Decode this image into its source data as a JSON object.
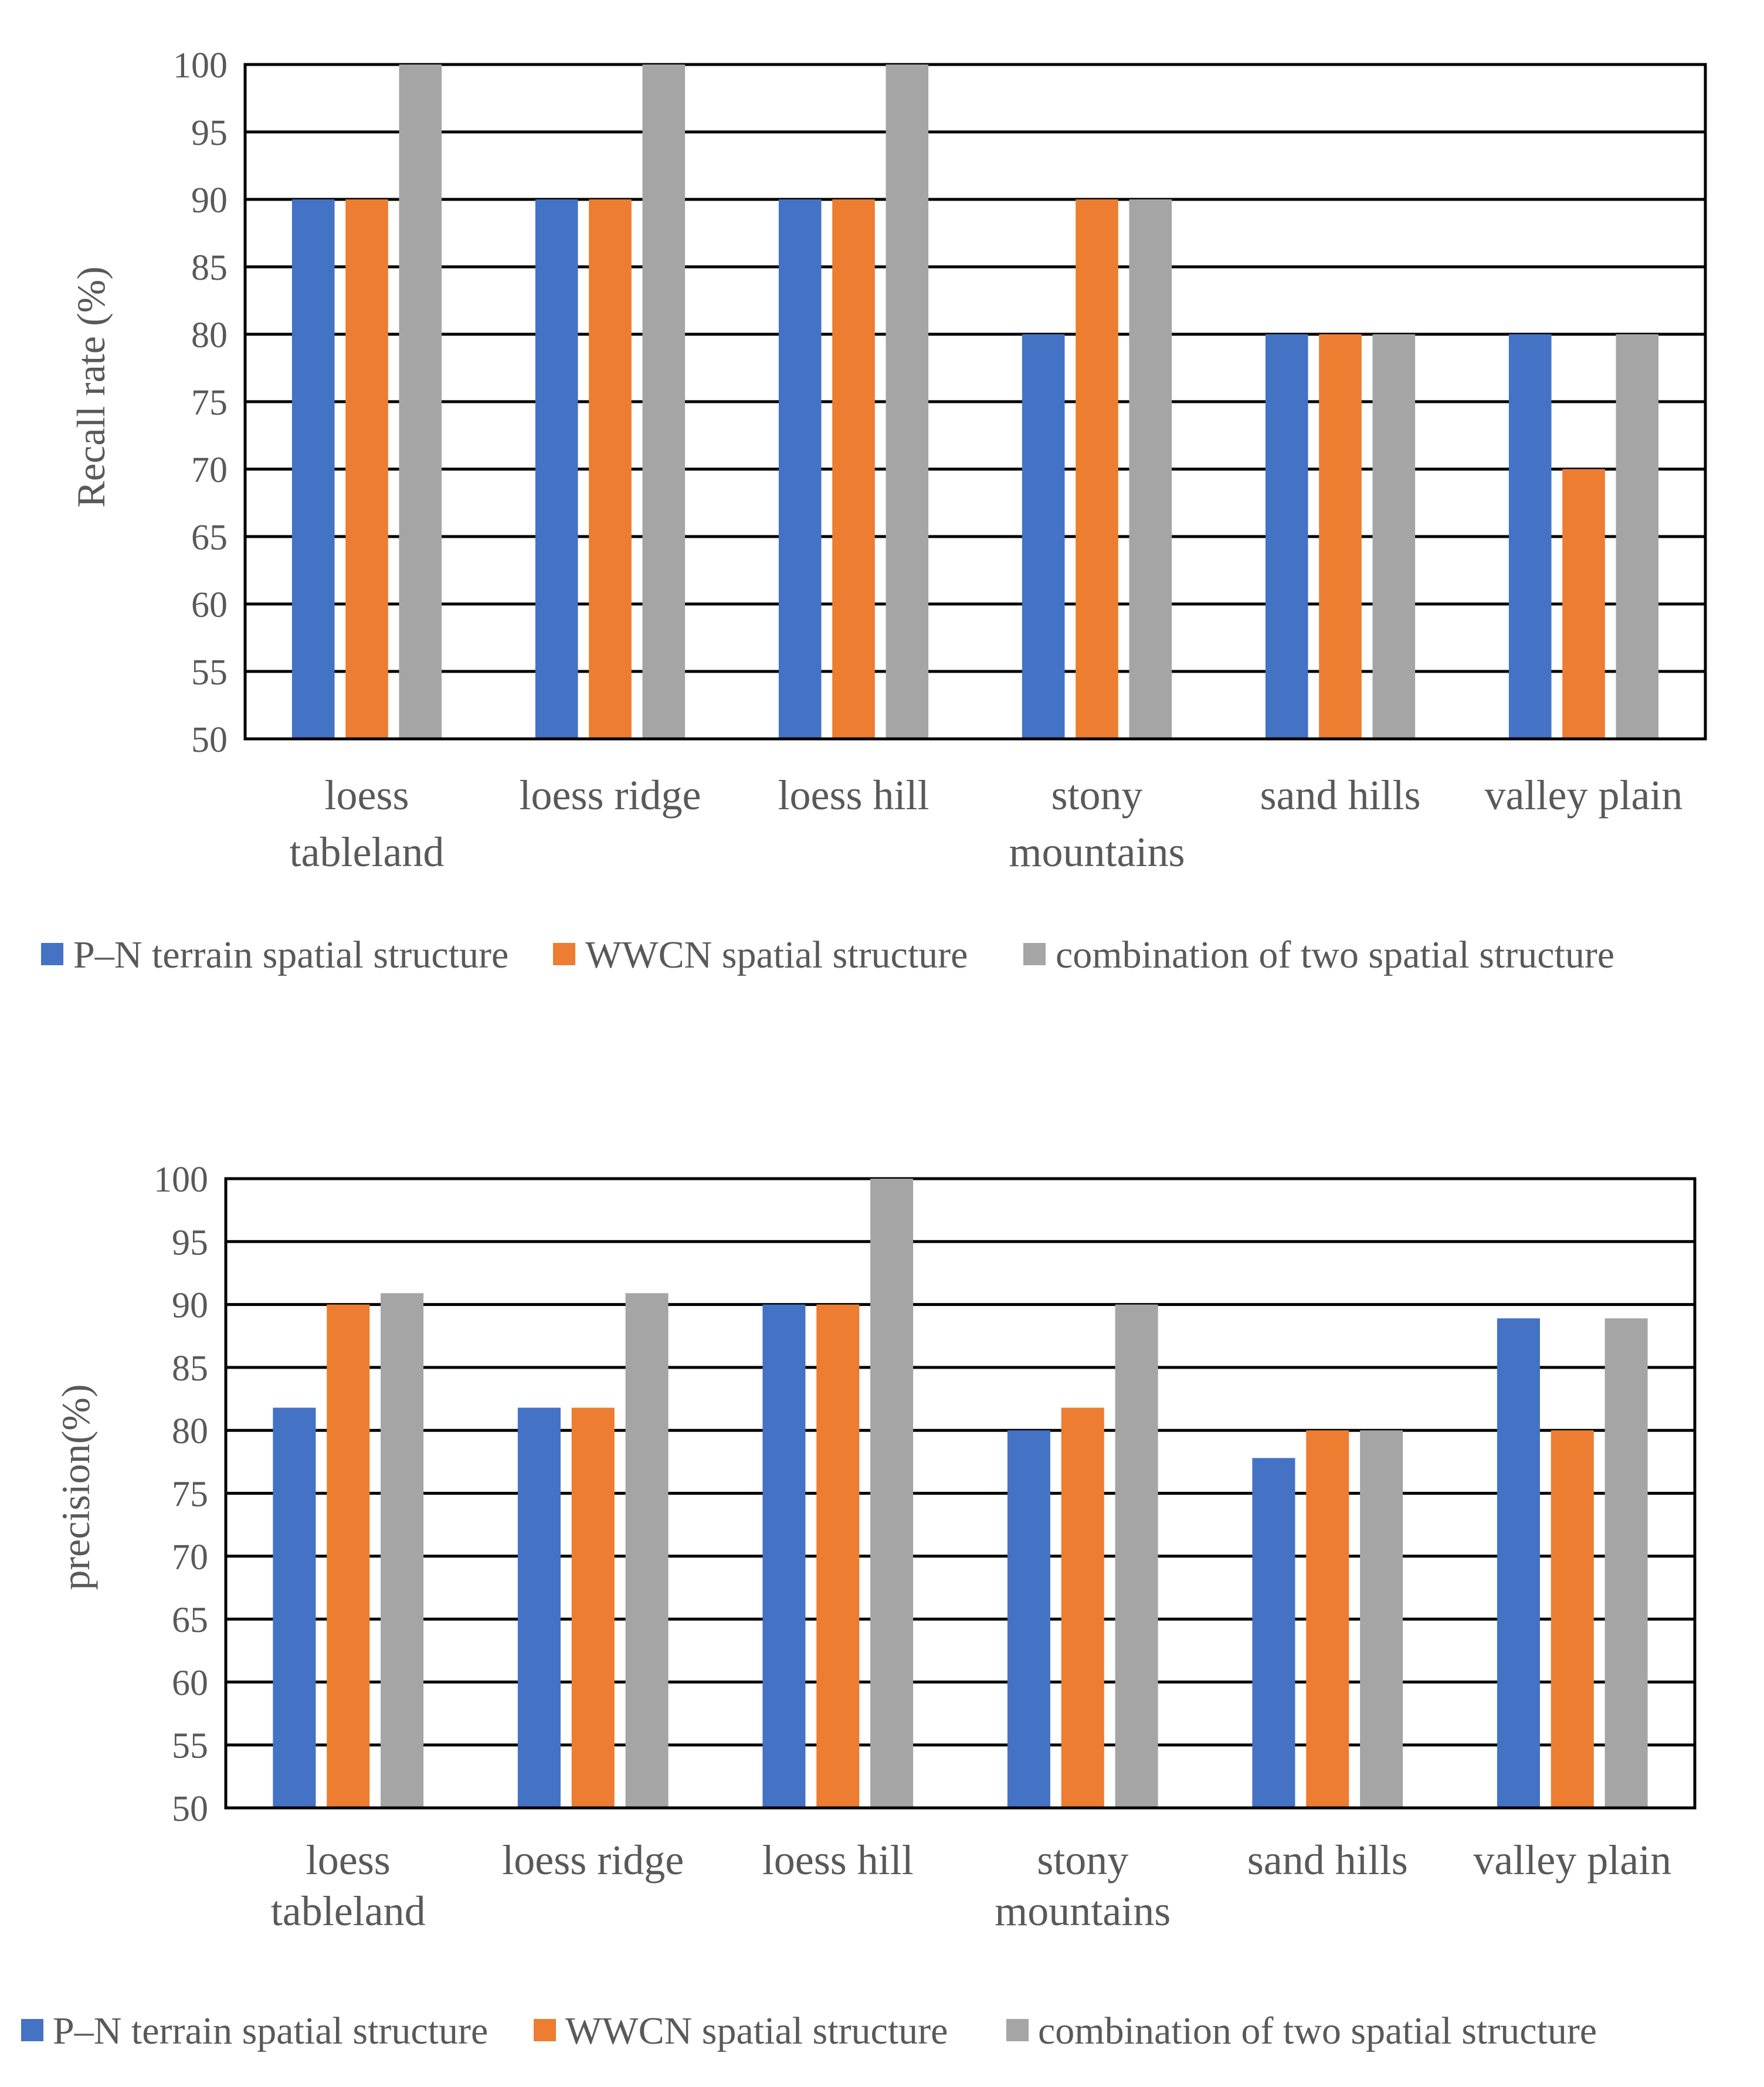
{
  "chart_data": [
    {
      "type": "bar",
      "title": "",
      "xlabel": "",
      "ylabel": "Recall rate (%)",
      "ylim": [
        50,
        100
      ],
      "ytick_step": 5,
      "grid": true,
      "legend_position": "bottom",
      "categories": [
        [
          "loess",
          "tableland"
        ],
        [
          "loess ridge"
        ],
        [
          "loess hill"
        ],
        [
          "stony",
          "mountains"
        ],
        [
          "sand hills"
        ],
        [
          "valley plain"
        ]
      ],
      "series": [
        {
          "name": "P–N terrain spatial structure",
          "color": "#4472C4",
          "values": [
            90,
            90,
            90,
            80,
            80,
            80
          ]
        },
        {
          "name": "WWCN spatial structure",
          "color": "#ED7D31",
          "values": [
            90,
            90,
            90,
            90,
            80,
            70
          ]
        },
        {
          "name": "combination of two spatial structure",
          "color": "#A5A5A5",
          "values": [
            100,
            100,
            100,
            90,
            80,
            80
          ]
        }
      ]
    },
    {
      "type": "bar",
      "title": "",
      "xlabel": "",
      "ylabel": "precision(%)",
      "ylim": [
        50,
        100
      ],
      "ytick_step": 5,
      "grid": true,
      "legend_position": "bottom",
      "categories": [
        [
          "loess",
          "tableland"
        ],
        [
          "loess ridge"
        ],
        [
          "loess hill"
        ],
        [
          "stony",
          "mountains"
        ],
        [
          "sand hills"
        ],
        [
          "valley plain"
        ]
      ],
      "series": [
        {
          "name": "P–N terrain spatial structure",
          "color": "#4472C4",
          "values": [
            81.8,
            81.8,
            90,
            80,
            77.8,
            88.9
          ]
        },
        {
          "name": "WWCN spatial structure",
          "color": "#ED7D31",
          "values": [
            90,
            81.8,
            90,
            81.8,
            80,
            80
          ]
        },
        {
          "name": "combination of two spatial structure",
          "color": "#A5A5A5",
          "values": [
            90.9,
            90.9,
            100,
            90,
            80,
            88.9
          ]
        }
      ]
    }
  ]
}
